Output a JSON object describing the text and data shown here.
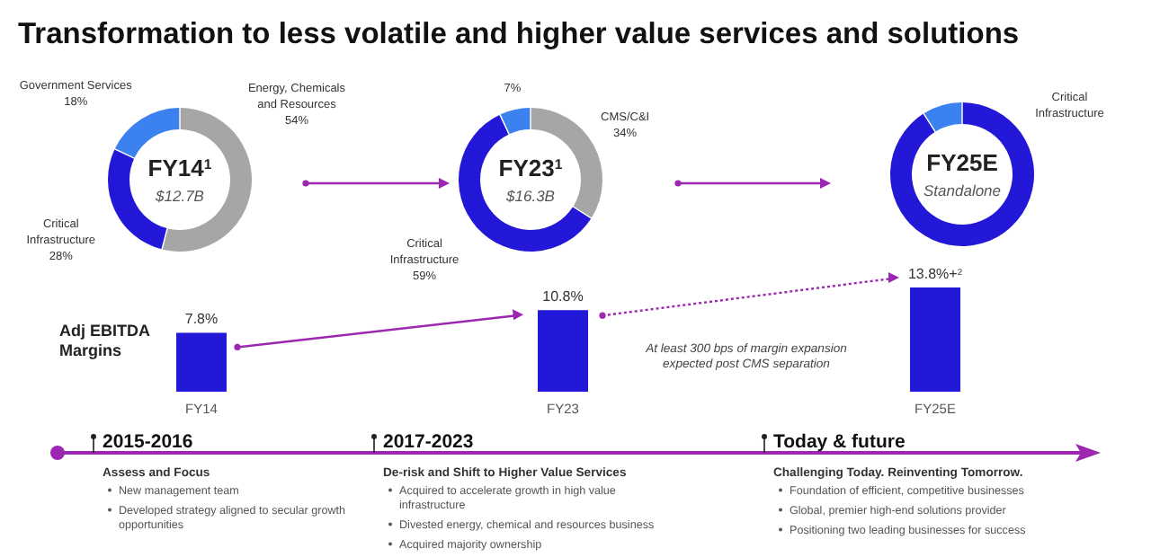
{
  "chart_data": [
    {
      "type": "other",
      "title": "Transformation to less volatile and higher value services and solutions",
      "annotations": [
        "2015-2016",
        "Assess and Focus",
        "New management team",
        "Developed strategy aligned to secular growth opportunities",
        "2017-2023",
        "De-risk and Shift to Higher Value Services",
        "Acquired to accelerate growth in high value infrastructure",
        "Divested energy, chemical and resources business",
        "Acquired majority ownership",
        "Today & future",
        "Challenging Today. Reinventing Tomorrow.",
        "Foundation of efficient, competitive businesses",
        "Global, premier high-end solutions provider",
        "Positioning two leading businesses for success"
      ]
    },
    {
      "type": "donut",
      "title": "FY14$^{1}$",
      "subtitle": "$12.7B",
      "categories": [
        "Energy, Chemicals and Resources",
        "Critical Infrastructure",
        "Government Services"
      ],
      "values": [
        54,
        28,
        18
      ],
      "colors": [
        "#a6a6a6",
        "#2318d8",
        "#3b82f0"
      ],
      "value_labels": [
        "54%",
        "28%",
        "18%"
      ]
    },
    {
      "type": "donut",
      "title": "FY23$^{1}$",
      "subtitle": "$16.3B",
      "categories": [
        "CMS/C&I",
        "Critical Infrastructure",
        null
      ],
      "values": [
        34,
        59,
        7
      ],
      "colors": [
        "#a6a6a6",
        "#2318d8",
        "#3b82f0"
      ],
      "value_labels": [
        "34%",
        "59%",
        "7%"
      ]
    },
    {
      "type": "donut",
      "title": "FY25E",
      "subtitle": "Standalone",
      "categories": [
        "Critical Infrastructure",
        null
      ],
      "values": [
        91,
        9
      ],
      "colors": [
        "#2318d8",
        "#3b82f0"
      ]
    },
    {
      "type": "bar",
      "ylabel": "Adj EBITDA Margins",
      "categories": [
        "FY14",
        "FY23",
        "FY25E"
      ],
      "values": [
        7.8,
        10.8,
        13.8
      ],
      "value_labels": [
        "7.8%",
        "10.8%",
        "13.8%+$^{2}$"
      ],
      "color": "#2318d8",
      "annotations": [
        "At least 300 bps of margin expansion expected post CMS separation"
      ]
    }
  ]
}
